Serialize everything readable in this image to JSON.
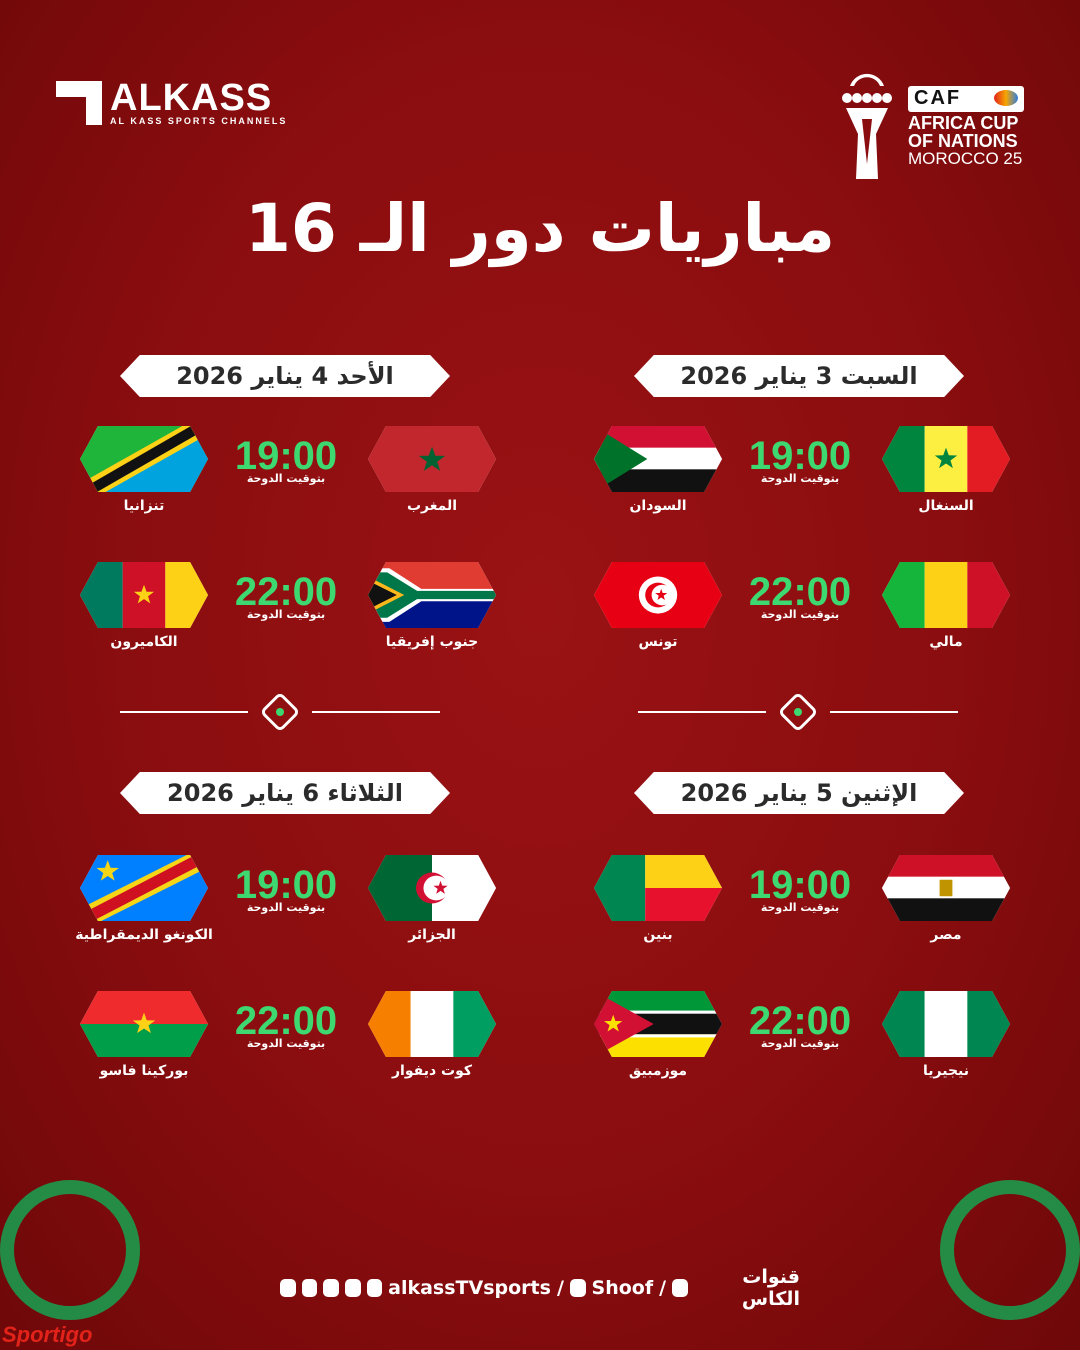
{
  "brand": {
    "name": "ALKASS",
    "subtitle": "AL KASS SPORTS CHANNELS"
  },
  "tournament": {
    "org": "CAF",
    "line1": "AFRICA CUP",
    "line2": "OF NATIONS",
    "line3": "MOROCCO 25"
  },
  "title": "مباريات دور الـ 16",
  "colors": {
    "background": "#8a0d0f",
    "time": "#3ed870",
    "pill": "#ffffff"
  },
  "days": [
    {
      "date": "السبت 3 يناير 2026",
      "column": "right",
      "row": "top",
      "matches": [
        {
          "home": "السنغال",
          "home_flag": "senegal",
          "away": "السودان",
          "away_flag": "sudan",
          "time": "19:00",
          "timezone": "بتوقيت الدوحة"
        },
        {
          "home": "مالي",
          "home_flag": "mali",
          "away": "تونس",
          "away_flag": "tunisia",
          "time": "22:00",
          "timezone": "بتوقيت الدوحة"
        }
      ]
    },
    {
      "date": "الأحد 4 يناير 2026",
      "column": "left",
      "row": "top",
      "matches": [
        {
          "home": "المغرب",
          "home_flag": "morocco",
          "away": "تنزانيا",
          "away_flag": "tanzania",
          "time": "19:00",
          "timezone": "بتوقيت الدوحة"
        },
        {
          "home": "جنوب إفريقيا",
          "home_flag": "south-africa",
          "away": "الكاميرون",
          "away_flag": "cameroon",
          "time": "22:00",
          "timezone": "بتوقيت الدوحة"
        }
      ]
    },
    {
      "date": "الإثنين 5 يناير 2026",
      "column": "right",
      "row": "bottom",
      "matches": [
        {
          "home": "مصر",
          "home_flag": "egypt",
          "away": "بنين",
          "away_flag": "benin",
          "time": "19:00",
          "timezone": "بتوقيت الدوحة"
        },
        {
          "home": "نيجيريا",
          "home_flag": "nigeria",
          "away": "موزمبيق",
          "away_flag": "mozambique",
          "time": "22:00",
          "timezone": "بتوقيت الدوحة"
        }
      ]
    },
    {
      "date": "الثلاثاء 6 يناير 2026",
      "column": "left",
      "row": "bottom",
      "matches": [
        {
          "home": "الجزائر",
          "home_flag": "algeria",
          "away": "الكونغو الديمقراطية",
          "away_flag": "dr-congo",
          "time": "19:00",
          "timezone": "بتوقيت الدوحة"
        },
        {
          "home": "كوت ديفوار",
          "home_flag": "ivory-coast",
          "away": "بوركينا فاسو",
          "away_flag": "burkina-faso",
          "time": "22:00",
          "timezone": "بتوقيت الدوحة"
        }
      ]
    }
  ],
  "footer": {
    "channel": "قنوات الكاس",
    "separator": "/",
    "app": "Shoof",
    "handle": "alkassTVsports",
    "social_icons": [
      "x-icon",
      "facebook-icon",
      "instagram-icon",
      "tiktok-icon",
      "youtube-icon"
    ]
  },
  "watermark": "Sportigo"
}
